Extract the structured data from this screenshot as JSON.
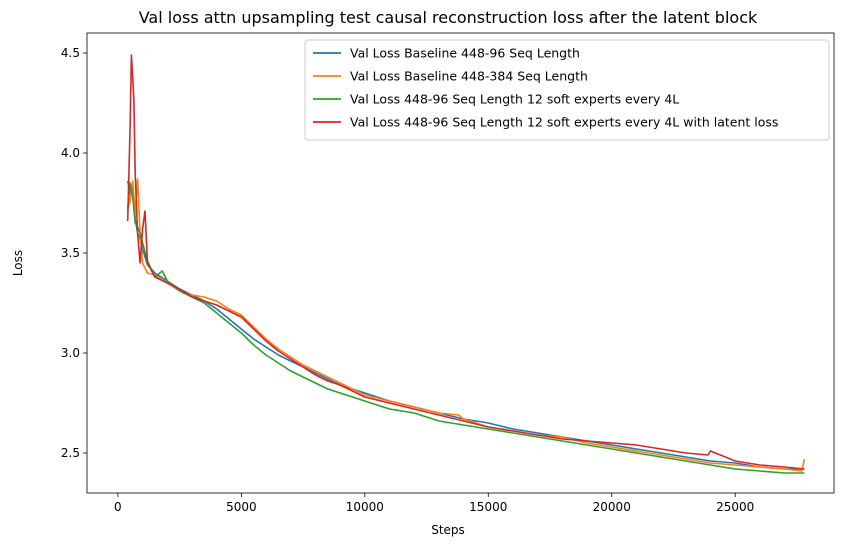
{
  "chart_data": {
    "type": "line",
    "title": "Val loss attn upsampling test causal reconstruction loss after the latent block",
    "xlabel": "Steps",
    "ylabel": "Loss",
    "xlim": [
      -1250,
      29000
    ],
    "ylim": [
      2.3,
      4.6
    ],
    "xticks": [
      0,
      5000,
      10000,
      15000,
      20000,
      25000
    ],
    "yticks": [
      2.5,
      3.0,
      3.5,
      4.0,
      4.5
    ],
    "ytick_labels": [
      "2.5",
      "3.0",
      "3.5",
      "4.0",
      "4.5"
    ],
    "grid": false,
    "legend_position": "top-right",
    "series": [
      {
        "name": "Val Loss Baseline 448-96 Seq Length",
        "color": "#1f77b4",
        "x": [
          400,
          500,
          600,
          700,
          800,
          900,
          1000,
          1200,
          1500,
          2000,
          2500,
          3000,
          3500,
          4000,
          4500,
          5000,
          5500,
          6000,
          6500,
          7000,
          7500,
          8000,
          8500,
          9000,
          9500,
          10000,
          11000,
          12000,
          13000,
          14000,
          15000,
          16000,
          17000,
          18000,
          19000,
          20000,
          21000,
          22000,
          23000,
          24000,
          25000,
          26000,
          27000,
          27800
        ],
        "y": [
          3.86,
          3.8,
          3.84,
          3.67,
          3.6,
          3.57,
          3.52,
          3.44,
          3.4,
          3.36,
          3.32,
          3.29,
          3.26,
          3.22,
          3.17,
          3.12,
          3.07,
          3.03,
          2.99,
          2.96,
          2.93,
          2.9,
          2.87,
          2.84,
          2.82,
          2.8,
          2.76,
          2.73,
          2.7,
          2.67,
          2.65,
          2.62,
          2.6,
          2.58,
          2.56,
          2.54,
          2.52,
          2.5,
          2.48,
          2.46,
          2.45,
          2.43,
          2.42,
          2.42
        ]
      },
      {
        "name": "Val Loss Baseline 448-384 Seq Length",
        "color": "#ff7f0e",
        "x": [
          400,
          500,
          600,
          700,
          800,
          900,
          1000,
          1200,
          1500,
          2000,
          2500,
          3000,
          3500,
          4000,
          4500,
          5000,
          5500,
          6000,
          6500,
          7000,
          7500,
          8000,
          8500,
          9000,
          9500,
          10000,
          11000,
          12000,
          13000,
          13800,
          14000,
          15000,
          16000,
          17000,
          18000,
          19000,
          20000,
          21000,
          22000,
          23000,
          24000,
          25000,
          26000,
          27000,
          27700,
          27800
        ],
        "y": [
          3.72,
          3.76,
          3.86,
          3.7,
          3.87,
          3.6,
          3.45,
          3.4,
          3.39,
          3.35,
          3.31,
          3.29,
          3.28,
          3.26,
          3.22,
          3.19,
          3.13,
          3.07,
          3.02,
          2.98,
          2.94,
          2.91,
          2.88,
          2.85,
          2.82,
          2.79,
          2.76,
          2.73,
          2.7,
          2.69,
          2.67,
          2.63,
          2.61,
          2.59,
          2.58,
          2.55,
          2.53,
          2.51,
          2.49,
          2.47,
          2.45,
          2.44,
          2.43,
          2.42,
          2.41,
          2.47
        ]
      },
      {
        "name": "Val Loss 448-96 Seq Length 12 soft experts every 4L",
        "color": "#2ca02c",
        "x": [
          400,
          500,
          600,
          700,
          800,
          900,
          1000,
          1200,
          1500,
          1800,
          2000,
          2500,
          3000,
          3500,
          4000,
          4500,
          5000,
          5500,
          6000,
          6500,
          7000,
          7500,
          8000,
          8500,
          9000,
          9500,
          10000,
          11000,
          12000,
          13000,
          14000,
          15000,
          16000,
          17000,
          18000,
          19000,
          20000,
          21000,
          22000,
          23000,
          24000,
          25000,
          26000,
          27000,
          27800
        ],
        "y": [
          3.72,
          3.85,
          3.78,
          3.65,
          3.63,
          3.6,
          3.55,
          3.46,
          3.38,
          3.41,
          3.36,
          3.31,
          3.28,
          3.25,
          3.2,
          3.15,
          3.1,
          3.04,
          2.99,
          2.95,
          2.91,
          2.88,
          2.85,
          2.82,
          2.8,
          2.78,
          2.76,
          2.72,
          2.7,
          2.66,
          2.64,
          2.62,
          2.6,
          2.58,
          2.56,
          2.54,
          2.52,
          2.5,
          2.48,
          2.46,
          2.44,
          2.42,
          2.41,
          2.4,
          2.4
        ]
      },
      {
        "name": "Val Loss 448-96 Seq Length 12 soft experts every 4L with latent loss",
        "color": "#d62728",
        "x": [
          400,
          500,
          550,
          600,
          650,
          700,
          800,
          900,
          1000,
          1100,
          1200,
          1500,
          2000,
          2500,
          3000,
          3500,
          4000,
          4500,
          5000,
          5500,
          6000,
          6500,
          7000,
          7500,
          8000,
          8500,
          9000,
          9500,
          10000,
          11000,
          12000,
          13000,
          14000,
          15000,
          16000,
          17000,
          18000,
          19000,
          20000,
          21000,
          22000,
          23000,
          23900,
          24000,
          25000,
          26000,
          27000,
          27800
        ],
        "y": [
          3.66,
          4.15,
          4.49,
          4.38,
          4.26,
          3.9,
          3.6,
          3.45,
          3.62,
          3.71,
          3.45,
          3.38,
          3.35,
          3.32,
          3.28,
          3.26,
          3.24,
          3.21,
          3.18,
          3.12,
          3.06,
          3.01,
          2.97,
          2.93,
          2.89,
          2.86,
          2.84,
          2.81,
          2.78,
          2.75,
          2.72,
          2.69,
          2.66,
          2.63,
          2.61,
          2.59,
          2.57,
          2.56,
          2.55,
          2.54,
          2.52,
          2.5,
          2.49,
          2.51,
          2.46,
          2.44,
          2.43,
          2.42
        ]
      }
    ]
  }
}
